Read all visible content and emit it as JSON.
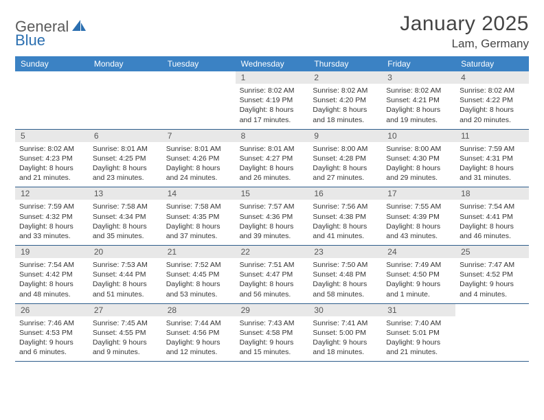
{
  "logo": {
    "text1": "General",
    "text2": "Blue"
  },
  "title": "January 2025",
  "location": "Lam, Germany",
  "colors": {
    "header_bg": "#3b82c4",
    "header_text": "#ffffff",
    "daynum_bg": "#e8e8e8",
    "border": "#2b5b8a",
    "logo_gray": "#5a5a5a",
    "logo_blue": "#2b6fb0"
  },
  "dayNames": [
    "Sunday",
    "Monday",
    "Tuesday",
    "Wednesday",
    "Thursday",
    "Friday",
    "Saturday"
  ],
  "weeks": [
    [
      null,
      null,
      null,
      {
        "n": "1",
        "sr": "8:02 AM",
        "ss": "4:19 PM",
        "dl": "8 hours and 17 minutes."
      },
      {
        "n": "2",
        "sr": "8:02 AM",
        "ss": "4:20 PM",
        "dl": "8 hours and 18 minutes."
      },
      {
        "n": "3",
        "sr": "8:02 AM",
        "ss": "4:21 PM",
        "dl": "8 hours and 19 minutes."
      },
      {
        "n": "4",
        "sr": "8:02 AM",
        "ss": "4:22 PM",
        "dl": "8 hours and 20 minutes."
      }
    ],
    [
      {
        "n": "5",
        "sr": "8:02 AM",
        "ss": "4:23 PM",
        "dl": "8 hours and 21 minutes."
      },
      {
        "n": "6",
        "sr": "8:01 AM",
        "ss": "4:25 PM",
        "dl": "8 hours and 23 minutes."
      },
      {
        "n": "7",
        "sr": "8:01 AM",
        "ss": "4:26 PM",
        "dl": "8 hours and 24 minutes."
      },
      {
        "n": "8",
        "sr": "8:01 AM",
        "ss": "4:27 PM",
        "dl": "8 hours and 26 minutes."
      },
      {
        "n": "9",
        "sr": "8:00 AM",
        "ss": "4:28 PM",
        "dl": "8 hours and 27 minutes."
      },
      {
        "n": "10",
        "sr": "8:00 AM",
        "ss": "4:30 PM",
        "dl": "8 hours and 29 minutes."
      },
      {
        "n": "11",
        "sr": "7:59 AM",
        "ss": "4:31 PM",
        "dl": "8 hours and 31 minutes."
      }
    ],
    [
      {
        "n": "12",
        "sr": "7:59 AM",
        "ss": "4:32 PM",
        "dl": "8 hours and 33 minutes."
      },
      {
        "n": "13",
        "sr": "7:58 AM",
        "ss": "4:34 PM",
        "dl": "8 hours and 35 minutes."
      },
      {
        "n": "14",
        "sr": "7:58 AM",
        "ss": "4:35 PM",
        "dl": "8 hours and 37 minutes."
      },
      {
        "n": "15",
        "sr": "7:57 AM",
        "ss": "4:36 PM",
        "dl": "8 hours and 39 minutes."
      },
      {
        "n": "16",
        "sr": "7:56 AM",
        "ss": "4:38 PM",
        "dl": "8 hours and 41 minutes."
      },
      {
        "n": "17",
        "sr": "7:55 AM",
        "ss": "4:39 PM",
        "dl": "8 hours and 43 minutes."
      },
      {
        "n": "18",
        "sr": "7:54 AM",
        "ss": "4:41 PM",
        "dl": "8 hours and 46 minutes."
      }
    ],
    [
      {
        "n": "19",
        "sr": "7:54 AM",
        "ss": "4:42 PM",
        "dl": "8 hours and 48 minutes."
      },
      {
        "n": "20",
        "sr": "7:53 AM",
        "ss": "4:44 PM",
        "dl": "8 hours and 51 minutes."
      },
      {
        "n": "21",
        "sr": "7:52 AM",
        "ss": "4:45 PM",
        "dl": "8 hours and 53 minutes."
      },
      {
        "n": "22",
        "sr": "7:51 AM",
        "ss": "4:47 PM",
        "dl": "8 hours and 56 minutes."
      },
      {
        "n": "23",
        "sr": "7:50 AM",
        "ss": "4:48 PM",
        "dl": "8 hours and 58 minutes."
      },
      {
        "n": "24",
        "sr": "7:49 AM",
        "ss": "4:50 PM",
        "dl": "9 hours and 1 minute."
      },
      {
        "n": "25",
        "sr": "7:47 AM",
        "ss": "4:52 PM",
        "dl": "9 hours and 4 minutes."
      }
    ],
    [
      {
        "n": "26",
        "sr": "7:46 AM",
        "ss": "4:53 PM",
        "dl": "9 hours and 6 minutes."
      },
      {
        "n": "27",
        "sr": "7:45 AM",
        "ss": "4:55 PM",
        "dl": "9 hours and 9 minutes."
      },
      {
        "n": "28",
        "sr": "7:44 AM",
        "ss": "4:56 PM",
        "dl": "9 hours and 12 minutes."
      },
      {
        "n": "29",
        "sr": "7:43 AM",
        "ss": "4:58 PM",
        "dl": "9 hours and 15 minutes."
      },
      {
        "n": "30",
        "sr": "7:41 AM",
        "ss": "5:00 PM",
        "dl": "9 hours and 18 minutes."
      },
      {
        "n": "31",
        "sr": "7:40 AM",
        "ss": "5:01 PM",
        "dl": "9 hours and 21 minutes."
      },
      null
    ]
  ],
  "labels": {
    "sunrise": "Sunrise:",
    "sunset": "Sunset:",
    "daylight": "Daylight:"
  }
}
